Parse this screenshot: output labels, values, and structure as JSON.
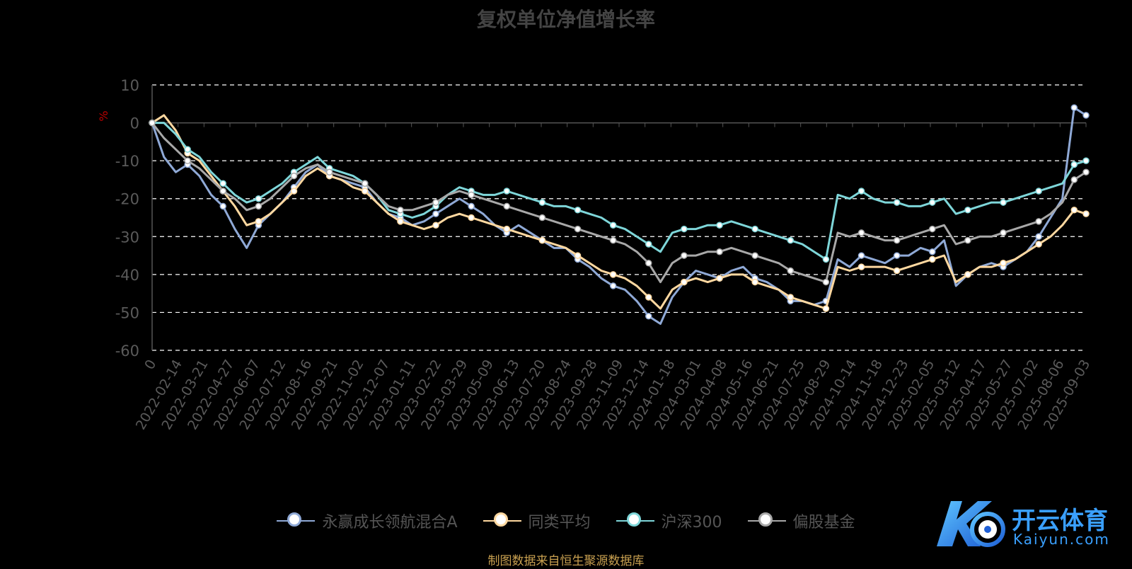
{
  "chart_data": {
    "type": "line",
    "title": "复权单位净值增长率",
    "ylabel": "%",
    "ylim": [
      -60,
      10
    ],
    "yticks": [
      10,
      0,
      -10,
      -20,
      -30,
      -40,
      -50,
      -60
    ],
    "grid": true,
    "legend_position": "bottom-center",
    "x_ticks": [
      "0",
      "2022-02-14",
      "2022-03-21",
      "2022-04-27",
      "2022-06-07",
      "2022-07-12",
      "2022-08-16",
      "2022-09-21",
      "2022-11-02",
      "2022-12-07",
      "2023-01-11",
      "2023-02-22",
      "2023-03-29",
      "2023-05-09",
      "2023-06-13",
      "2023-07-20",
      "2023-08-24",
      "2023-09-28",
      "2023-11-09",
      "2023-12-14",
      "2024-01-18",
      "2024-03-01",
      "2024-04-08",
      "2024-05-16",
      "2024-06-21",
      "2024-07-25",
      "2024-08-29",
      "2024-10-14",
      "2024-11-18",
      "2024-12-23",
      "2025-02-05",
      "2025-03-12",
      "2025-04-17",
      "2025-05-27",
      "2025-07-02",
      "2025-08-06",
      "2025-09-03"
    ],
    "series": [
      {
        "name": "永赢成长领航混合A",
        "color": "#8fa9d6",
        "values": [
          0,
          -9,
          -13,
          -11,
          -14,
          -19,
          -22,
          -28,
          -33,
          -27,
          -24,
          -21,
          -17,
          -13,
          -11,
          -14,
          -15,
          -16,
          -17,
          -21,
          -24,
          -25,
          -27,
          -26,
          -24,
          -22,
          -20,
          -22,
          -24,
          -27,
          -29,
          -27,
          -29,
          -31,
          -33,
          -33,
          -36,
          -38,
          -41,
          -43,
          -44,
          -47,
          -51,
          -53,
          -46,
          -42,
          -39,
          -40,
          -41,
          -39,
          -38,
          -41,
          -42,
          -44,
          -47,
          -47,
          -48,
          -47,
          -36,
          -38,
          -35,
          -36,
          -37,
          -35,
          -35,
          -33,
          -34,
          -31,
          -43,
          -40,
          -38,
          -37,
          -38,
          -36,
          -34,
          -30,
          -25,
          -20,
          4,
          2
        ]
      },
      {
        "name": "同类平均",
        "color": "#ffd8a0",
        "values": [
          0,
          2,
          -2,
          -8,
          -10,
          -14,
          -18,
          -22,
          -27,
          -26,
          -24,
          -21,
          -18,
          -14,
          -12,
          -14,
          -15,
          -17,
          -18,
          -21,
          -24,
          -26,
          -27,
          -28,
          -27,
          -25,
          -24,
          -25,
          -26,
          -27,
          -28,
          -29,
          -30,
          -31,
          -32,
          -33,
          -35,
          -37,
          -39,
          -40,
          -41,
          -43,
          -46,
          -49,
          -44,
          -42,
          -41,
          -42,
          -41,
          -40,
          -40,
          -42,
          -43,
          -44,
          -46,
          -47,
          -48,
          -49,
          -38,
          -39,
          -38,
          -38,
          -38,
          -39,
          -38,
          -37,
          -36,
          -35,
          -42,
          -40,
          -38,
          -38,
          -37,
          -36,
          -34,
          -32,
          -30,
          -27,
          -23,
          -24
        ]
      },
      {
        "name": "沪深300",
        "color": "#7ed6d9",
        "values": [
          0,
          0,
          -3,
          -7,
          -9,
          -13,
          -16,
          -19,
          -21,
          -20,
          -18,
          -16,
          -13,
          -11,
          -9,
          -12,
          -13,
          -14,
          -16,
          -19,
          -23,
          -24,
          -25,
          -24,
          -22,
          -19,
          -17,
          -18,
          -19,
          -19,
          -18,
          -19,
          -20,
          -21,
          -22,
          -22,
          -23,
          -24,
          -25,
          -27,
          -28,
          -30,
          -32,
          -34,
          -29,
          -28,
          -28,
          -27,
          -27,
          -26,
          -27,
          -28,
          -29,
          -30,
          -31,
          -32,
          -34,
          -36,
          -19,
          -20,
          -18,
          -20,
          -21,
          -21,
          -22,
          -22,
          -21,
          -20,
          -24,
          -23,
          -22,
          -21,
          -21,
          -20,
          -19,
          -18,
          -17,
          -16,
          -11,
          -10
        ]
      },
      {
        "name": "偏股基金",
        "color": "#a8a8a8",
        "values": [
          0,
          -4,
          -7,
          -10,
          -12,
          -15,
          -18,
          -20,
          -23,
          -22,
          -20,
          -17,
          -14,
          -12,
          -11,
          -13,
          -14,
          -15,
          -16,
          -19,
          -22,
          -23,
          -23,
          -22,
          -21,
          -19,
          -18,
          -19,
          -20,
          -21,
          -22,
          -23,
          -24,
          -25,
          -26,
          -27,
          -28,
          -29,
          -30,
          -31,
          -32,
          -34,
          -37,
          -42,
          -37,
          -35,
          -35,
          -34,
          -34,
          -33,
          -34,
          -35,
          -36,
          -37,
          -39,
          -40,
          -41,
          -42,
          -29,
          -30,
          -29,
          -30,
          -31,
          -31,
          -30,
          -29,
          -28,
          -27,
          -32,
          -31,
          -30,
          -30,
          -29,
          -28,
          -27,
          -26,
          -24,
          -21,
          -15,
          -13
        ]
      }
    ]
  },
  "source_note": "制图数据来自恒生聚源数据库",
  "logo": {
    "text": "开云体育",
    "sub": "Kaiyun.com"
  }
}
